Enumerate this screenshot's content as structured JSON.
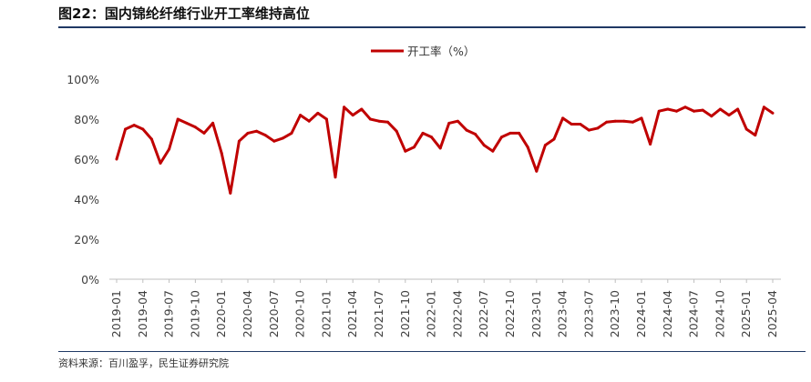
{
  "figure": {
    "title": "图22：国内锦纶纤维行业开工率维持高位",
    "source": "资料来源：百川盈孚，民生证券研究院",
    "accent_color": "#1f3864"
  },
  "chart_data": {
    "type": "line",
    "title": "",
    "xlabel": "",
    "ylabel": "",
    "ylim": [
      0,
      100
    ],
    "y_ticks": [
      0,
      20,
      40,
      60,
      80,
      100
    ],
    "y_tick_labels": [
      "0%",
      "20%",
      "40%",
      "60%",
      "80%",
      "100%"
    ],
    "legend_position": "top-center",
    "grid": false,
    "x_tick_labels": [
      "2019-01",
      "2019-04",
      "2019-07",
      "2019-10",
      "2020-01",
      "2020-04",
      "2020-07",
      "2020-10",
      "2021-01",
      "2021-04",
      "2021-07",
      "2021-10",
      "2022-01",
      "2022-04",
      "2022-07",
      "2022-10",
      "2023-01",
      "2023-04",
      "2023-07",
      "2023-10",
      "2024-01",
      "2024-04",
      "2024-07",
      "2024-10",
      "2025-01",
      "2025-04"
    ],
    "series": [
      {
        "name": "开工率（%）",
        "color": "#c00000",
        "x": [
          "2019-01",
          "2019-02",
          "2019-03",
          "2019-04",
          "2019-05",
          "2019-06",
          "2019-07",
          "2019-08",
          "2019-09",
          "2019-10",
          "2019-11",
          "2019-12",
          "2020-01",
          "2020-02",
          "2020-03",
          "2020-04",
          "2020-05",
          "2020-06",
          "2020-07",
          "2020-08",
          "2020-09",
          "2020-10",
          "2020-11",
          "2020-12",
          "2021-01",
          "2021-02",
          "2021-03",
          "2021-04",
          "2021-05",
          "2021-06",
          "2021-07",
          "2021-08",
          "2021-09",
          "2021-10",
          "2021-11",
          "2021-12",
          "2022-01",
          "2022-02",
          "2022-03",
          "2022-04",
          "2022-05",
          "2022-06",
          "2022-07",
          "2022-08",
          "2022-09",
          "2022-10",
          "2022-11",
          "2022-12",
          "2023-01",
          "2023-02",
          "2023-03",
          "2023-04",
          "2023-05",
          "2023-06",
          "2023-07",
          "2023-08",
          "2023-09",
          "2023-10",
          "2023-11",
          "2023-12",
          "2024-01",
          "2024-02",
          "2024-03",
          "2024-04",
          "2024-05",
          "2024-06",
          "2024-07",
          "2024-08",
          "2024-09",
          "2024-10",
          "2024-11",
          "2024-12",
          "2025-01",
          "2025-02",
          "2025-03",
          "2025-04"
        ],
        "values": [
          60,
          75,
          77,
          75,
          70,
          58,
          65,
          80,
          78,
          76,
          73,
          78,
          63,
          43,
          69,
          73,
          74,
          72,
          69,
          70.5,
          73,
          82,
          79,
          83,
          80,
          51,
          86,
          82,
          85,
          80,
          79,
          78.5,
          74,
          64,
          66,
          73,
          71,
          65.5,
          78,
          79,
          74.5,
          72.5,
          67,
          64,
          71,
          73,
          73,
          66,
          54,
          67,
          70,
          80.5,
          77.5,
          77.5,
          74.5,
          75.5,
          78.5,
          79,
          79,
          78.5,
          80.5,
          67.5,
          84,
          85,
          84,
          86,
          84,
          84.5,
          81.5,
          85,
          82,
          85,
          75,
          72,
          86,
          83
        ]
      }
    ]
  }
}
